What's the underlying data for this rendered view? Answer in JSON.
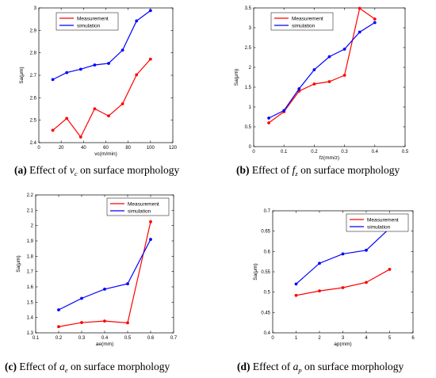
{
  "chart_data": [
    {
      "type": "line",
      "caption": {
        "label": "(a)",
        "pre": " Effect of ",
        "sym": "v",
        "sub": "c",
        "post": " on surface morphology"
      },
      "xlabel": "vc(m/min)",
      "ylabel": "Sa(μm)",
      "xlim": [
        0,
        120
      ],
      "ylim": [
        2.4,
        3
      ],
      "xticks": [
        "0",
        "20",
        "40",
        "60",
        "80",
        "100",
        "120"
      ],
      "yticks": [
        "2.4",
        "2.5",
        "2.6",
        "2.7",
        "2.8",
        "2.9",
        "3"
      ],
      "legend_position": "top-left",
      "series": [
        {
          "name": "Measurement",
          "color": "#ff0000",
          "x": [
            12.5,
            25,
            37.5,
            50,
            62.5,
            75,
            87.5,
            100
          ],
          "y": [
            2.455,
            2.508,
            2.425,
            2.551,
            2.519,
            2.573,
            2.702,
            2.772
          ]
        },
        {
          "name": "simulation",
          "color": "#0000ff",
          "x": [
            12.5,
            25,
            37.5,
            50,
            62.5,
            75,
            87.5,
            100
          ],
          "y": [
            2.681,
            2.712,
            2.727,
            2.746,
            2.753,
            2.812,
            2.942,
            2.988
          ]
        }
      ]
    },
    {
      "type": "line",
      "caption": {
        "label": "(b)",
        "pre": " Effect of ",
        "sym": "f",
        "sub": "z",
        "post": " on surface morphology"
      },
      "xlabel": "fz(mm/z)",
      "ylabel": "Sa(μm)",
      "xlim": [
        0,
        0.5
      ],
      "ylim": [
        0,
        3.5
      ],
      "xticks": [
        "0",
        "0.1",
        "0.2",
        "0.3",
        "0.4",
        "0.5"
      ],
      "yticks": [
        "0",
        "0.5",
        "1",
        "1.5",
        "2",
        "2.5",
        "3",
        "3.5"
      ],
      "legend_position": "top-left",
      "series": [
        {
          "name": "Measurement",
          "color": "#ff0000",
          "x": [
            0.05,
            0.1,
            0.15,
            0.2,
            0.25,
            0.3,
            0.35,
            0.4
          ],
          "y": [
            0.6,
            0.88,
            1.4,
            1.58,
            1.64,
            1.8,
            3.49,
            3.22
          ]
        },
        {
          "name": "simulation",
          "color": "#0000ff",
          "x": [
            0.05,
            0.1,
            0.15,
            0.2,
            0.25,
            0.3,
            0.35,
            0.4
          ],
          "y": [
            0.72,
            0.91,
            1.46,
            1.94,
            2.27,
            2.46,
            2.89,
            3.13
          ]
        }
      ]
    },
    {
      "type": "line",
      "caption": {
        "label": "(c)",
        "pre": " Effect of ",
        "sym": "a",
        "sub": "e",
        "post": " on surface morphology"
      },
      "xlabel": "ae(mm)",
      "ylabel": "Sa(μm)",
      "xlim": [
        0.1,
        0.7
      ],
      "ylim": [
        1.3,
        2.2
      ],
      "xticks": [
        "0.1",
        "0.2",
        "0.3",
        "0.4",
        "0.5",
        "0.6",
        "0.7"
      ],
      "yticks": [
        "1.3",
        "1.4",
        "1.5",
        "1.6",
        "1.7",
        "1.8",
        "1.9",
        "2",
        "2.1",
        "2.2"
      ],
      "legend_position": "top-right",
      "series": [
        {
          "name": "Measurement",
          "color": "#ff0000",
          "x": [
            0.2,
            0.3,
            0.4,
            0.5,
            0.6
          ],
          "y": [
            1.34,
            1.367,
            1.377,
            1.365,
            2.025
          ]
        },
        {
          "name": "simulation",
          "color": "#0000ff",
          "x": [
            0.2,
            0.3,
            0.4,
            0.5,
            0.6
          ],
          "y": [
            1.45,
            1.525,
            1.585,
            1.62,
            1.91
          ]
        }
      ]
    },
    {
      "type": "line",
      "caption": {
        "label": "(d)",
        "pre": " Effect of ",
        "sym": "a",
        "sub": "p",
        "post": " on surface morphology"
      },
      "xlabel": "ap(mm)",
      "ylabel": "Sa(μm)",
      "xlim": [
        0,
        6
      ],
      "ylim": [
        0.4,
        0.7
      ],
      "xticks": [
        "0",
        "1",
        "2",
        "3",
        "4",
        "5",
        "6"
      ],
      "yticks": [
        "0.4",
        "0.45",
        "0.5",
        "0.55",
        "0.6",
        "0.65",
        "0.7"
      ],
      "legend_position": "top-right",
      "series": [
        {
          "name": "Measurement",
          "color": "#ff0000",
          "x": [
            1,
            2,
            3,
            4,
            5
          ],
          "y": [
            0.492,
            0.503,
            0.511,
            0.524,
            0.556
          ]
        },
        {
          "name": "simulation",
          "color": "#0000ff",
          "x": [
            1,
            2,
            3,
            4,
            5
          ],
          "y": [
            0.52,
            0.571,
            0.594,
            0.603,
            0.657
          ]
        }
      ]
    }
  ]
}
